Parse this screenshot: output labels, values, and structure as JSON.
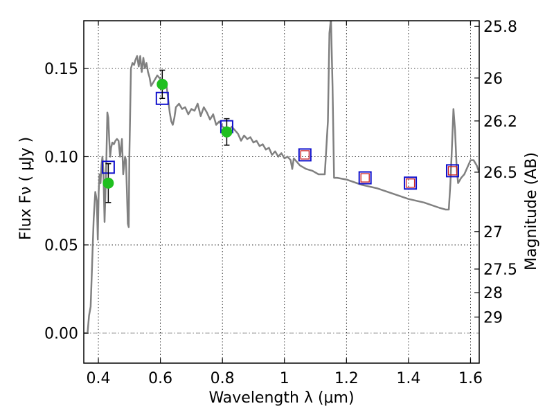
{
  "chart_data": {
    "type": "line",
    "xlabel": "Wavelength  λ (μm)",
    "ylabel": "Flux  Fν  ( μJy )",
    "ylabel_right": "Magnitude (AB)",
    "xlim": [
      0.353,
      1.628
    ],
    "ylim": [
      -0.017,
      0.177
    ],
    "grid": true,
    "x_ticks": [
      {
        "value": 0.4,
        "label": "0.4"
      },
      {
        "value": 0.6,
        "label": "0.6"
      },
      {
        "value": 0.8,
        "label": "0.8"
      },
      {
        "value": 1.0,
        "label": "1"
      },
      {
        "value": 1.2,
        "label": "1.2"
      },
      {
        "value": 1.4,
        "label": "1.4"
      },
      {
        "value": 1.6,
        "label": "1.6"
      }
    ],
    "y_ticks": [
      {
        "value": 0.0,
        "label": "0.00"
      },
      {
        "value": 0.05,
        "label": "0.05"
      },
      {
        "value": 0.1,
        "label": "0.10"
      },
      {
        "value": 0.15,
        "label": "0.15"
      }
    ],
    "right_ticks": [
      {
        "value": 25.8,
        "label": "25.8"
      },
      {
        "value": 26.0,
        "label": "26"
      },
      {
        "value": 26.2,
        "label": "26.2"
      },
      {
        "value": 26.5,
        "label": "26.5"
      },
      {
        "value": 27.0,
        "label": "27"
      },
      {
        "value": 27.5,
        "label": "27.5"
      },
      {
        "value": 28.0,
        "label": "28"
      },
      {
        "value": 29.0,
        "label": "29"
      }
    ],
    "colors": {
      "model": "#808080",
      "observed": "#1fbf1f",
      "model_box": "#1010cc",
      "inner_box": "#cc2020",
      "error_bar": "#000000"
    },
    "series": [
      {
        "kind": "line",
        "x": [
          0.353,
          0.365,
          0.37,
          0.375,
          0.38,
          0.385,
          0.39,
          0.395,
          0.398,
          0.401,
          0.404,
          0.407,
          0.41,
          0.413,
          0.416,
          0.42,
          0.423,
          0.426,
          0.429,
          0.432,
          0.435,
          0.438,
          0.441,
          0.445,
          0.45,
          0.455,
          0.46,
          0.465,
          0.47,
          0.473,
          0.476,
          0.48,
          0.483,
          0.486,
          0.489,
          0.492,
          0.495,
          0.498,
          0.5,
          0.505,
          0.51,
          0.515,
          0.52,
          0.525,
          0.53,
          0.535,
          0.54,
          0.545,
          0.55,
          0.555,
          0.56,
          0.565,
          0.57,
          0.58,
          0.59,
          0.6,
          0.61,
          0.62,
          0.63,
          0.635,
          0.64,
          0.645,
          0.65,
          0.66,
          0.67,
          0.68,
          0.69,
          0.7,
          0.71,
          0.72,
          0.73,
          0.74,
          0.75,
          0.76,
          0.77,
          0.78,
          0.79,
          0.8,
          0.81,
          0.82,
          0.83,
          0.84,
          0.85,
          0.86,
          0.87,
          0.88,
          0.89,
          0.9,
          0.91,
          0.92,
          0.93,
          0.94,
          0.95,
          0.96,
          0.97,
          0.98,
          0.99,
          1.0,
          1.01,
          1.02,
          1.025,
          1.03,
          1.04,
          1.05,
          1.07,
          1.09,
          1.11,
          1.13,
          1.14,
          1.145,
          1.15,
          1.155,
          1.16,
          1.17,
          1.2,
          1.25,
          1.3,
          1.35,
          1.4,
          1.45,
          1.5,
          1.52,
          1.53,
          1.535,
          1.54,
          1.545,
          1.55,
          1.555,
          1.56,
          1.57,
          1.58,
          1.6,
          1.61,
          1.62,
          1.628
        ],
        "y": [
          0.0,
          0.0,
          0.01,
          0.015,
          0.04,
          0.065,
          0.08,
          0.075,
          0.053,
          0.08,
          0.09,
          0.085,
          0.095,
          0.1,
          0.093,
          0.063,
          0.08,
          0.1,
          0.125,
          0.122,
          0.11,
          0.1,
          0.105,
          0.108,
          0.107,
          0.109,
          0.11,
          0.109,
          0.1,
          0.105,
          0.11,
          0.09,
          0.095,
          0.1,
          0.098,
          0.08,
          0.062,
          0.06,
          0.1,
          0.15,
          0.153,
          0.152,
          0.155,
          0.157,
          0.151,
          0.157,
          0.148,
          0.156,
          0.15,
          0.153,
          0.148,
          0.145,
          0.14,
          0.143,
          0.146,
          0.144,
          0.142,
          0.14,
          0.125,
          0.12,
          0.118,
          0.122,
          0.128,
          0.13,
          0.127,
          0.128,
          0.124,
          0.127,
          0.126,
          0.13,
          0.123,
          0.128,
          0.125,
          0.121,
          0.124,
          0.118,
          0.12,
          0.117,
          0.116,
          0.114,
          0.117,
          0.115,
          0.113,
          0.109,
          0.112,
          0.11,
          0.111,
          0.108,
          0.109,
          0.106,
          0.107,
          0.104,
          0.105,
          0.101,
          0.103,
          0.1,
          0.102,
          0.099,
          0.1,
          0.098,
          0.093,
          0.099,
          0.097,
          0.095,
          0.093,
          0.092,
          0.09,
          0.09,
          0.12,
          0.17,
          0.178,
          0.14,
          0.088,
          0.088,
          0.087,
          0.084,
          0.082,
          0.079,
          0.076,
          0.074,
          0.071,
          0.07,
          0.07,
          0.085,
          0.105,
          0.127,
          0.115,
          0.095,
          0.085,
          0.088,
          0.09,
          0.098,
          0.098,
          0.095,
          0.091
        ]
      },
      {
        "kind": "errorbar-points",
        "x": [
          0.432,
          0.606,
          0.814
        ],
        "y": [
          0.085,
          0.141,
          0.114
        ],
        "yerr": [
          0.011,
          0.008,
          0.0075
        ]
      },
      {
        "kind": "box-markers",
        "x": [
          0.432,
          0.606,
          0.814,
          1.066,
          1.26,
          1.406,
          1.542
        ],
        "y": [
          0.094,
          0.133,
          0.117,
          0.101,
          0.088,
          0.085,
          0.092
        ]
      },
      {
        "kind": "inner-box-markers",
        "x": [
          1.066,
          1.26,
          1.406,
          1.542
        ],
        "y": [
          0.101,
          0.088,
          0.085,
          0.092
        ]
      }
    ]
  }
}
